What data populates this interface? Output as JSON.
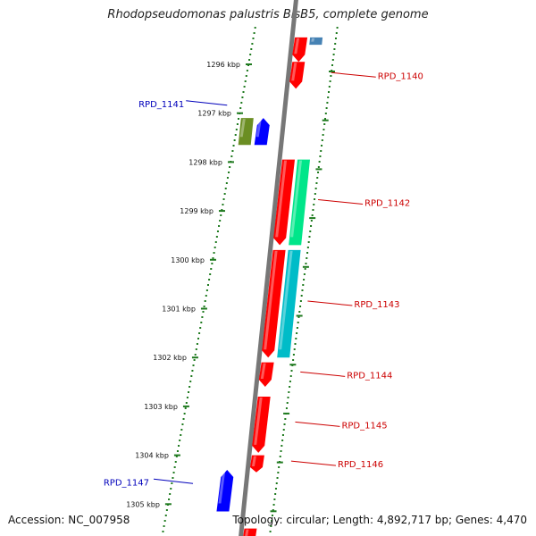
{
  "title": "Rhodopseudomonas palustris BisB5, complete genome",
  "footer": {
    "accession": "Accession: NC_007958",
    "topology": "Topology: circular; Length: 4,892,717 bp; Genes: 4,470"
  },
  "colors": {
    "backbone": "#777777",
    "ticks": "#1f7a1f",
    "label_plus": "#cc0000",
    "label_minus": "#0000bb"
  },
  "ticks": [
    {
      "kbp": 1296,
      "label": "1296 kbp"
    },
    {
      "kbp": 1297,
      "label": "1297 kbp"
    },
    {
      "kbp": 1298,
      "label": "1298 kbp"
    },
    {
      "kbp": 1299,
      "label": "1299 kbp"
    },
    {
      "kbp": 1300,
      "label": "1300 kbp"
    },
    {
      "kbp": 1301,
      "label": "1301 kbp"
    },
    {
      "kbp": 1302,
      "label": "1302 kbp"
    },
    {
      "kbp": 1303,
      "label": "1303 kbp"
    },
    {
      "kbp": 1304,
      "label": "1304 kbp"
    },
    {
      "kbp": 1305,
      "label": "1305 kbp"
    }
  ],
  "genes": [
    {
      "strand": "+",
      "track": "cds",
      "start": 1295.45,
      "end": 1295.95,
      "color": "#ff0000",
      "label": ""
    },
    {
      "strand": "+",
      "track": "product",
      "start": 1295.45,
      "end": 1295.6,
      "color": "#4682b4",
      "label": ""
    },
    {
      "strand": "+",
      "track": "cds",
      "start": 1295.95,
      "end": 1296.5,
      "color": "#ff0000",
      "label": "RPD_1140"
    },
    {
      "strand": "-",
      "track": "cds",
      "start": 1297.1,
      "end": 1297.65,
      "color": "#0000ff",
      "label": ""
    },
    {
      "strand": "-",
      "track": "product",
      "start": 1297.1,
      "end": 1297.65,
      "color": "#6b8e23",
      "label": "RPD_1141"
    },
    {
      "strand": "+",
      "track": "cds",
      "start": 1297.95,
      "end": 1299.7,
      "color": "#ff0000",
      "label": "RPD_1142"
    },
    {
      "strand": "+",
      "track": "product",
      "start": 1297.95,
      "end": 1299.7,
      "color": "#00e68a",
      "label": ""
    },
    {
      "strand": "+",
      "track": "cds",
      "start": 1299.8,
      "end": 1302.0,
      "color": "#ff0000",
      "label": "RPD_1143"
    },
    {
      "strand": "+",
      "track": "product",
      "start": 1299.8,
      "end": 1302.0,
      "color": "#00bcc8",
      "label": ""
    },
    {
      "strand": "+",
      "track": "cds",
      "start": 1302.1,
      "end": 1302.6,
      "color": "#ff0000",
      "label": "RPD_1144"
    },
    {
      "strand": "+",
      "track": "cds",
      "start": 1302.8,
      "end": 1303.95,
      "color": "#ff0000",
      "label": "RPD_1145"
    },
    {
      "strand": "+",
      "track": "cds",
      "start": 1304.0,
      "end": 1304.35,
      "color": "#ff0000",
      "label": "RPD_1146"
    },
    {
      "strand": "-",
      "track": "cds",
      "start": 1304.3,
      "end": 1305.15,
      "color": "#0000ff",
      "label": "RPD_1147"
    },
    {
      "strand": "+",
      "track": "cds",
      "start": 1305.5,
      "end": 1305.8,
      "color": "#ff0000",
      "label": ""
    }
  ]
}
